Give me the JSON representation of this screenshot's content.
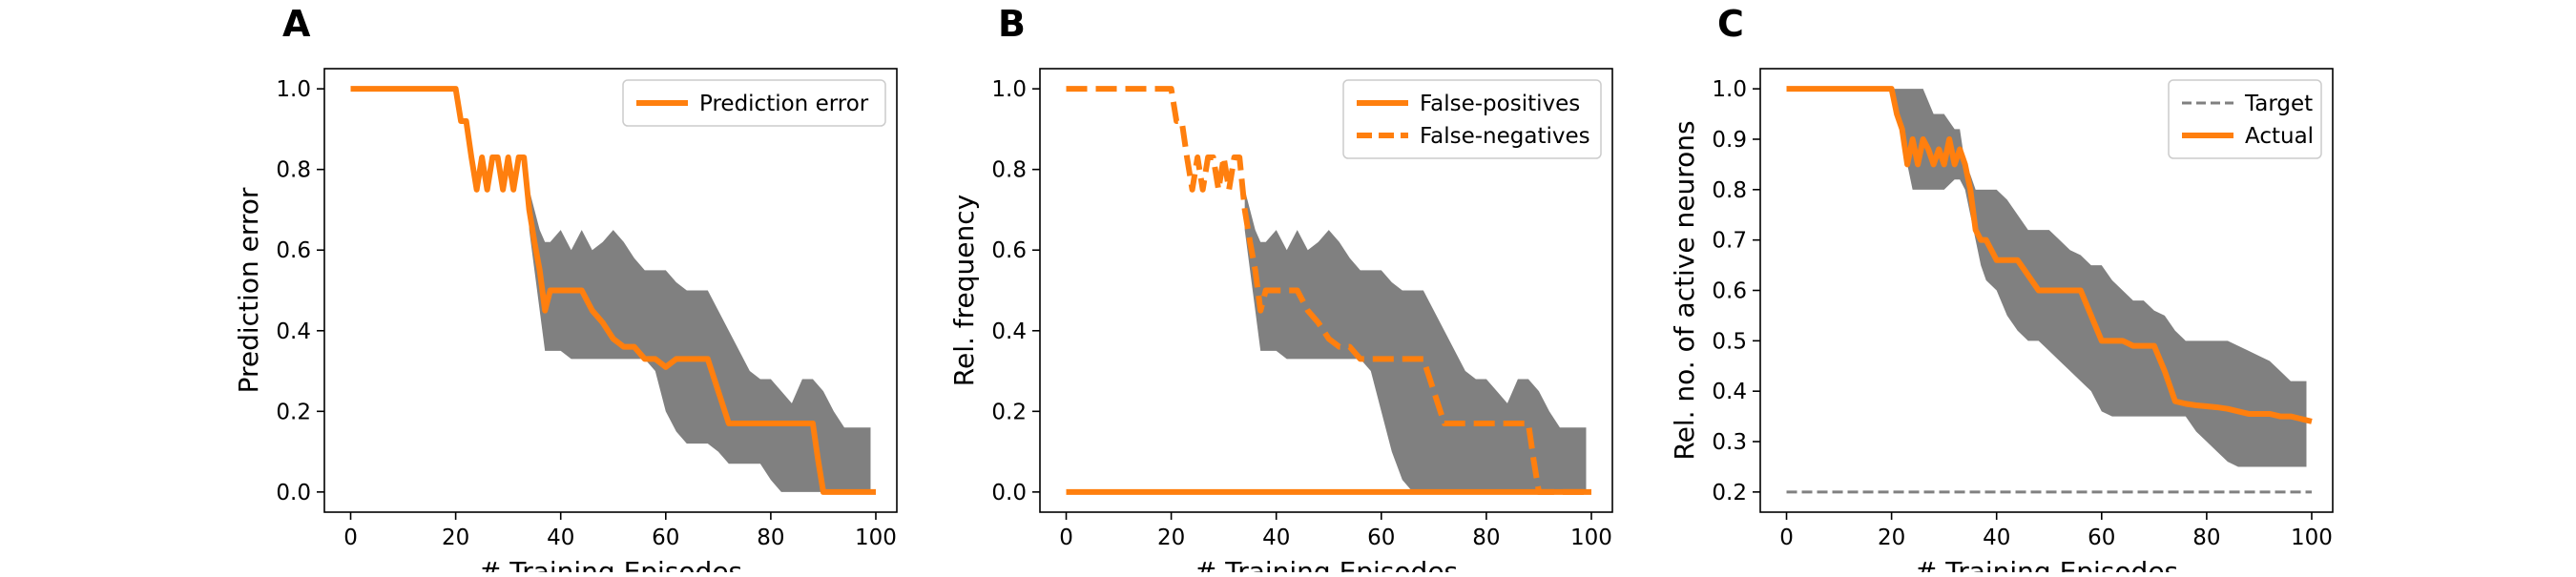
{
  "colors": {
    "line": "#ff7f0e",
    "band": "#808080",
    "target": "#808080",
    "axis": "#000000",
    "legend_border": "#cccccc"
  },
  "chart_data": [
    {
      "panel": "A",
      "type": "line",
      "xlabel": "# Training Episodes",
      "ylabel": "Prediction error",
      "xlim": [
        -5,
        104
      ],
      "ylim": [
        -0.05,
        1.05
      ],
      "xticks": [
        0,
        20,
        40,
        60,
        80,
        100
      ],
      "yticks": [
        0.0,
        0.2,
        0.4,
        0.6,
        0.8,
        1.0
      ],
      "ytick_format": 1,
      "grid": false,
      "legend_position": "top-right",
      "band": {
        "x": [
          34,
          35,
          36,
          37,
          38,
          40,
          42,
          44,
          46,
          48,
          50,
          52,
          54,
          56,
          58,
          60,
          62,
          64,
          66,
          68,
          70,
          72,
          74,
          76,
          78,
          80,
          82,
          84,
          86,
          88,
          90,
          92,
          94,
          96,
          98,
          99
        ],
        "upper": [
          0.75,
          0.7,
          0.65,
          0.62,
          0.62,
          0.65,
          0.6,
          0.65,
          0.6,
          0.62,
          0.65,
          0.62,
          0.58,
          0.55,
          0.55,
          0.55,
          0.52,
          0.5,
          0.5,
          0.5,
          0.45,
          0.4,
          0.35,
          0.3,
          0.28,
          0.28,
          0.25,
          0.22,
          0.28,
          0.28,
          0.25,
          0.2,
          0.16,
          0.16,
          0.16,
          0.16
        ],
        "lower": [
          0.65,
          0.55,
          0.45,
          0.35,
          0.35,
          0.35,
          0.33,
          0.33,
          0.33,
          0.33,
          0.33,
          0.33,
          0.33,
          0.33,
          0.3,
          0.2,
          0.15,
          0.12,
          0.12,
          0.12,
          0.1,
          0.07,
          0.07,
          0.07,
          0.07,
          0.03,
          0.0,
          0.0,
          0.0,
          0.0,
          0.0,
          0.0,
          0.0,
          0.0,
          0.0,
          0.0
        ]
      },
      "series": [
        {
          "name": "Prediction error",
          "style": "solid",
          "x": [
            0,
            20,
            21,
            22,
            23,
            24,
            25,
            26,
            27,
            28,
            29,
            30,
            31,
            32,
            33,
            34,
            35,
            36,
            37,
            38,
            40,
            42,
            44,
            46,
            48,
            50,
            52,
            54,
            56,
            58,
            60,
            62,
            64,
            66,
            68,
            70,
            72,
            74,
            76,
            78,
            80,
            82,
            84,
            86,
            88,
            89,
            90,
            92,
            94,
            96,
            98,
            100
          ],
          "y": [
            1.0,
            1.0,
            0.92,
            0.92,
            0.83,
            0.75,
            0.83,
            0.75,
            0.83,
            0.83,
            0.75,
            0.83,
            0.75,
            0.83,
            0.83,
            0.7,
            0.62,
            0.55,
            0.45,
            0.5,
            0.5,
            0.5,
            0.5,
            0.45,
            0.42,
            0.38,
            0.36,
            0.36,
            0.33,
            0.33,
            0.31,
            0.33,
            0.33,
            0.33,
            0.33,
            0.25,
            0.17,
            0.17,
            0.17,
            0.17,
            0.17,
            0.17,
            0.17,
            0.17,
            0.17,
            0.08,
            0.0,
            0.0,
            0.0,
            0.0,
            0.0,
            0.0
          ]
        }
      ]
    },
    {
      "panel": "B",
      "type": "line",
      "xlabel": "# Training Episodes",
      "ylabel": "Rel. frequency",
      "xlim": [
        -5,
        104
      ],
      "ylim": [
        -0.05,
        1.05
      ],
      "xticks": [
        0,
        20,
        40,
        60,
        80,
        100
      ],
      "yticks": [
        0.0,
        0.2,
        0.4,
        0.6,
        0.8,
        1.0
      ],
      "ytick_format": 1,
      "grid": false,
      "legend_position": "top-right",
      "band": {
        "x": [
          34,
          35,
          36,
          37,
          38,
          40,
          42,
          44,
          46,
          48,
          50,
          52,
          54,
          56,
          58,
          60,
          62,
          64,
          66,
          68,
          70,
          72,
          74,
          76,
          78,
          80,
          82,
          84,
          86,
          88,
          90,
          92,
          94,
          96,
          98,
          99
        ],
        "upper": [
          0.75,
          0.7,
          0.65,
          0.62,
          0.62,
          0.65,
          0.6,
          0.65,
          0.6,
          0.62,
          0.65,
          0.62,
          0.58,
          0.55,
          0.55,
          0.55,
          0.52,
          0.5,
          0.5,
          0.5,
          0.45,
          0.4,
          0.35,
          0.3,
          0.28,
          0.28,
          0.25,
          0.22,
          0.28,
          0.28,
          0.25,
          0.2,
          0.16,
          0.16,
          0.16,
          0.16
        ],
        "lower": [
          0.65,
          0.55,
          0.45,
          0.35,
          0.35,
          0.35,
          0.33,
          0.33,
          0.33,
          0.33,
          0.33,
          0.33,
          0.33,
          0.33,
          0.3,
          0.2,
          0.1,
          0.03,
          0.0,
          0.0,
          0.0,
          0.0,
          0.0,
          0.0,
          0.0,
          0.0,
          0.0,
          0.0,
          0.0,
          0.0,
          0.0,
          0.0,
          0.0,
          0.0,
          0.0,
          0.0
        ]
      },
      "series": [
        {
          "name": "False-positives",
          "style": "solid",
          "x": [
            0,
            100
          ],
          "y": [
            0.0,
            0.0
          ]
        },
        {
          "name": "False-negatives",
          "style": "dashed",
          "x": [
            0,
            20,
            21,
            22,
            23,
            24,
            25,
            26,
            27,
            28,
            29,
            30,
            31,
            32,
            33,
            34,
            35,
            36,
            37,
            38,
            40,
            42,
            44,
            46,
            48,
            50,
            52,
            54,
            56,
            58,
            60,
            62,
            64,
            66,
            68,
            70,
            72,
            74,
            76,
            78,
            80,
            82,
            84,
            86,
            88,
            89,
            90,
            92,
            94,
            96,
            98,
            100
          ],
          "y": [
            1.0,
            1.0,
            0.92,
            0.92,
            0.83,
            0.75,
            0.83,
            0.75,
            0.83,
            0.83,
            0.75,
            0.83,
            0.75,
            0.83,
            0.83,
            0.7,
            0.62,
            0.55,
            0.45,
            0.5,
            0.5,
            0.5,
            0.5,
            0.45,
            0.42,
            0.38,
            0.36,
            0.36,
            0.33,
            0.33,
            0.33,
            0.33,
            0.33,
            0.33,
            0.33,
            0.25,
            0.17,
            0.17,
            0.17,
            0.17,
            0.17,
            0.17,
            0.17,
            0.17,
            0.17,
            0.08,
            0.0,
            0.0,
            0.0,
            0.0,
            0.0,
            0.0
          ]
        }
      ]
    },
    {
      "panel": "C",
      "type": "line",
      "xlabel": "# Training Episodes",
      "ylabel": "Rel. no. of active neurons",
      "xlim": [
        -5,
        104
      ],
      "ylim": [
        0.16,
        1.04
      ],
      "xticks": [
        0,
        20,
        40,
        60,
        80,
        100
      ],
      "yticks": [
        0.2,
        0.3,
        0.4,
        0.5,
        0.6,
        0.7,
        0.8,
        0.9,
        1.0
      ],
      "ytick_format": 1,
      "grid": false,
      "legend_position": "top-right",
      "band": {
        "x": [
          20,
          22,
          24,
          26,
          28,
          30,
          32,
          33,
          34,
          35,
          36,
          37,
          38,
          40,
          42,
          44,
          46,
          48,
          50,
          52,
          54,
          56,
          58,
          60,
          62,
          64,
          66,
          68,
          70,
          72,
          74,
          76,
          78,
          80,
          82,
          84,
          86,
          88,
          90,
          92,
          94,
          96,
          98,
          99
        ],
        "upper": [
          1.0,
          1.0,
          1.0,
          1.0,
          0.95,
          0.95,
          0.92,
          0.92,
          0.85,
          0.83,
          0.8,
          0.8,
          0.8,
          0.8,
          0.78,
          0.75,
          0.72,
          0.72,
          0.72,
          0.7,
          0.68,
          0.67,
          0.65,
          0.65,
          0.62,
          0.6,
          0.58,
          0.58,
          0.56,
          0.55,
          0.52,
          0.5,
          0.5,
          0.5,
          0.5,
          0.5,
          0.49,
          0.48,
          0.47,
          0.46,
          0.44,
          0.42,
          0.42,
          0.42
        ],
        "lower": [
          1.0,
          0.9,
          0.8,
          0.8,
          0.8,
          0.8,
          0.82,
          0.82,
          0.8,
          0.75,
          0.7,
          0.65,
          0.62,
          0.6,
          0.55,
          0.52,
          0.5,
          0.5,
          0.48,
          0.46,
          0.44,
          0.42,
          0.4,
          0.36,
          0.35,
          0.35,
          0.35,
          0.35,
          0.35,
          0.35,
          0.35,
          0.35,
          0.32,
          0.3,
          0.28,
          0.26,
          0.25,
          0.25,
          0.25,
          0.25,
          0.25,
          0.25,
          0.25,
          0.25
        ]
      },
      "series": [
        {
          "name": "Target",
          "style": "target-dashed",
          "x": [
            0,
            100
          ],
          "y": [
            0.2,
            0.2
          ]
        },
        {
          "name": "Actual",
          "style": "solid",
          "x": [
            0,
            20,
            21,
            22,
            23,
            24,
            25,
            26,
            27,
            28,
            29,
            30,
            31,
            32,
            33,
            34,
            35,
            36,
            37,
            38,
            40,
            42,
            44,
            46,
            48,
            50,
            52,
            54,
            56,
            58,
            60,
            62,
            64,
            66,
            68,
            70,
            72,
            74,
            76,
            78,
            80,
            82,
            84,
            86,
            88,
            90,
            92,
            94,
            96,
            98,
            100
          ],
          "y": [
            1.0,
            1.0,
            0.95,
            0.92,
            0.85,
            0.9,
            0.85,
            0.9,
            0.88,
            0.85,
            0.88,
            0.85,
            0.9,
            0.85,
            0.88,
            0.85,
            0.8,
            0.72,
            0.7,
            0.7,
            0.66,
            0.66,
            0.66,
            0.63,
            0.6,
            0.6,
            0.6,
            0.6,
            0.6,
            0.55,
            0.5,
            0.5,
            0.5,
            0.49,
            0.49,
            0.49,
            0.44,
            0.38,
            0.375,
            0.372,
            0.37,
            0.368,
            0.365,
            0.36,
            0.355,
            0.355,
            0.355,
            0.35,
            0.35,
            0.345,
            0.34
          ]
        }
      ]
    }
  ]
}
